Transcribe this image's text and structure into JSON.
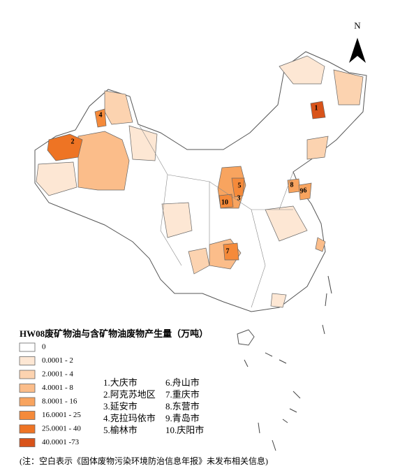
{
  "north_label": "N",
  "map_labels": [
    "1",
    "2",
    "3",
    "4",
    "5",
    "6",
    "7",
    "8",
    "9",
    "10"
  ],
  "legend": {
    "title": "HW08废矿物油与含矿物油废物产生量（万吨）",
    "classes": [
      {
        "label": "0",
        "color": "#ffffff"
      },
      {
        "label": "0.0001 - 2",
        "color": "#fde7d4"
      },
      {
        "label": "2.0001 - 4",
        "color": "#fcd3b0"
      },
      {
        "label": "4.0001 - 8",
        "color": "#fbbd8a"
      },
      {
        "label": "8.0001 - 16",
        "color": "#f8a45f"
      },
      {
        "label": "16.0001 - 25",
        "color": "#f58a3a"
      },
      {
        "label": "25.0001 - 40",
        "color": "#ee7424"
      },
      {
        "label": "40.0001 -73",
        "color": "#d8531a"
      }
    ]
  },
  "cities": [
    "1.大庆市",
    "2.阿克苏地区",
    "3.延安市",
    "4.克拉玛依市",
    "5.榆林市",
    "6.舟山市",
    "7.重庆市",
    "8.东营市",
    "9.青岛市",
    "10.庆阳市"
  ],
  "note": "(注：空白表示《固体废物污染环境防治信息年报》未发布相关信息)"
}
